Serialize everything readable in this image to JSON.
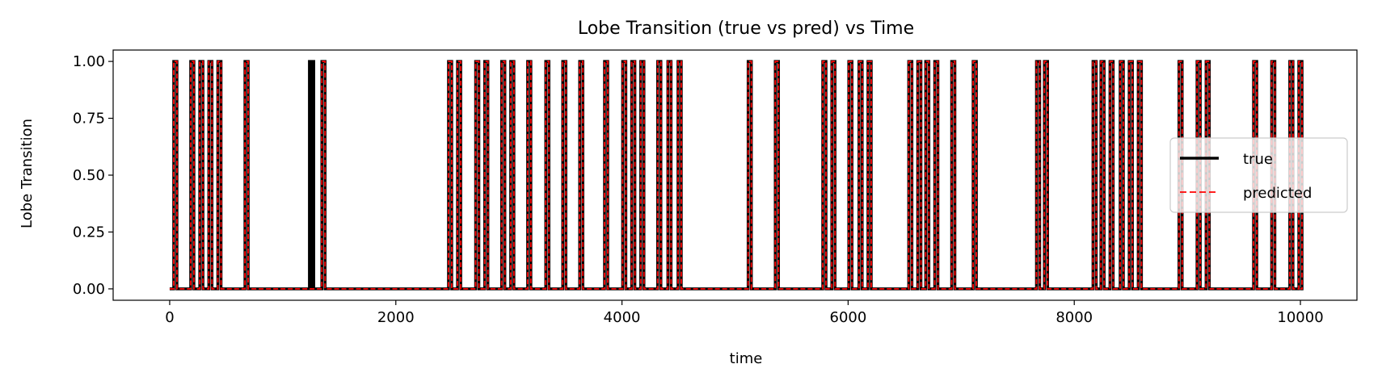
{
  "chart_data": {
    "type": "line",
    "title": "Lobe Transition (true vs pred) vs Time",
    "xlabel": "time",
    "ylabel": "Lobe Transition",
    "xlim": [
      -500,
      10500
    ],
    "ylim": [
      -0.05,
      1.05
    ],
    "xticks": [
      0,
      2000,
      4000,
      6000,
      8000,
      10000
    ],
    "xtick_labels": [
      "0",
      "2000",
      "4000",
      "6000",
      "8000",
      "10000"
    ],
    "yticks": [
      0.0,
      0.25,
      0.5,
      0.75,
      1.0
    ],
    "ytick_labels": [
      "0.00",
      "0.25",
      "0.50",
      "0.75",
      "1.00"
    ],
    "grid": false,
    "legend_position": "center-right",
    "x_range": [
      0,
      10000
    ],
    "series": [
      {
        "name": "true",
        "color": "#000000",
        "style": "solid",
        "spike_times": [
          50,
          200,
          280,
          360,
          440,
          680,
          1250,
          1255,
          1260,
          1360,
          2480,
          2560,
          2720,
          2800,
          2950,
          3030,
          3180,
          3340,
          3490,
          3640,
          3860,
          4020,
          4100,
          4180,
          4330,
          4420,
          4510,
          5130,
          5370,
          5790,
          5870,
          6020,
          6110,
          6190,
          6550,
          6630,
          6700,
          6780,
          6930,
          7120,
          7680,
          7750,
          8180,
          8250,
          8330,
          8420,
          8500,
          8580,
          8940,
          9100,
          9180,
          9600,
          9760,
          9920,
          10000
        ]
      },
      {
        "name": "predicted",
        "color": "#ff0000",
        "style": "dashed",
        "spike_times": [
          50,
          200,
          280,
          360,
          440,
          680,
          1360,
          2480,
          2560,
          2720,
          2800,
          2950,
          3030,
          3180,
          3340,
          3490,
          3640,
          3860,
          4020,
          4100,
          4180,
          4330,
          4420,
          4510,
          5130,
          5370,
          5790,
          5870,
          6020,
          6110,
          6190,
          6550,
          6630,
          6700,
          6780,
          6930,
          7120,
          7680,
          7750,
          8180,
          8250,
          8330,
          8420,
          8500,
          8580,
          8940,
          9100,
          9180,
          9600,
          9760,
          9920,
          10000
        ]
      }
    ]
  }
}
